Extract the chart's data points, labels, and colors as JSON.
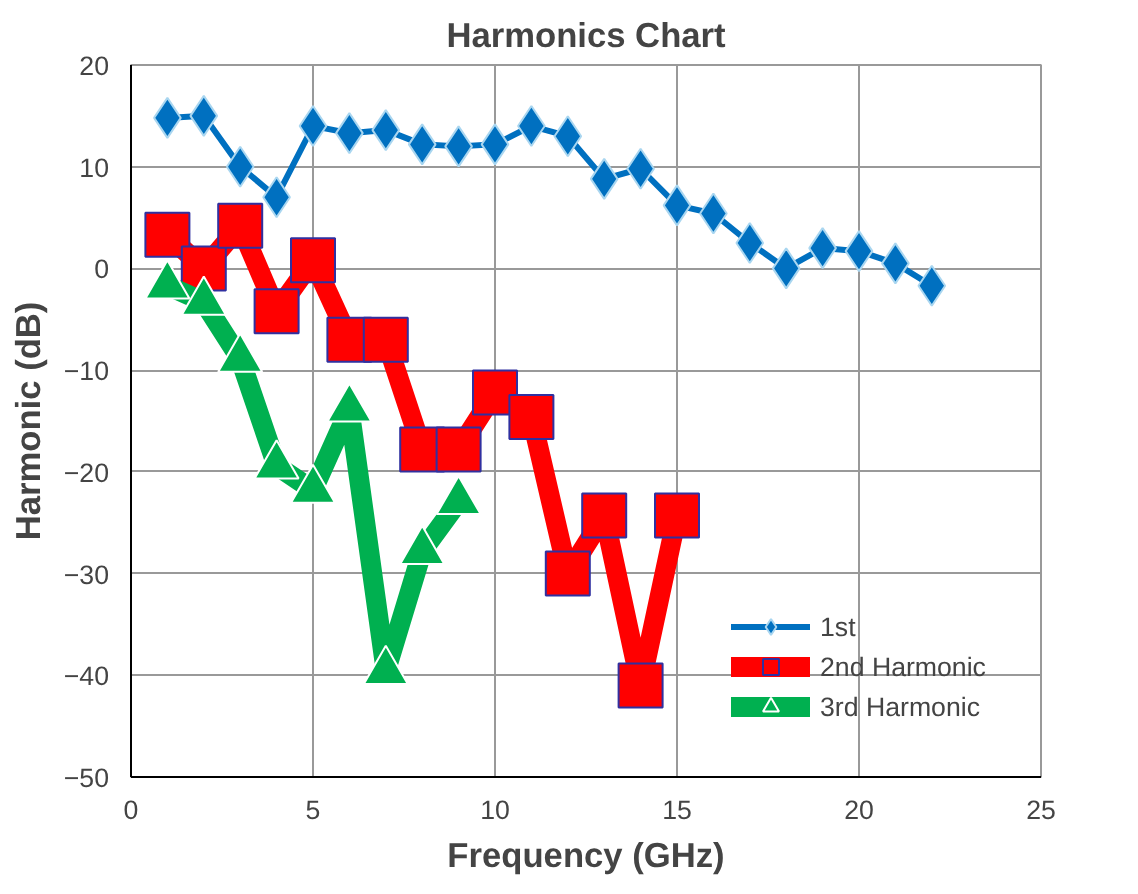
{
  "chart_data": {
    "type": "line",
    "title": "Harmonics Chart",
    "xlabel": "Frequency (GHz)",
    "ylabel": "Harmonic (dB)",
    "xlim": [
      0,
      25
    ],
    "xticks": [
      0,
      5,
      10,
      15,
      20,
      25
    ],
    "ylim": [
      -50,
      20
    ],
    "yticks": [
      -50,
      -40,
      -30,
      -20,
      -10,
      0,
      10,
      20
    ],
    "grid": true,
    "legend": "bottom right",
    "series": [
      {
        "name": "1st",
        "color": "#0070c0",
        "marker": "diamond",
        "x": [
          1,
          2,
          3,
          4,
          5,
          6,
          7,
          8,
          9,
          10,
          11,
          12,
          13,
          14,
          15,
          16,
          17,
          18,
          19,
          20,
          21,
          22
        ],
        "values": [
          14.8,
          15,
          10,
          7,
          14,
          13.3,
          13.6,
          12.2,
          12,
          12.2,
          14,
          13,
          8.8,
          9.8,
          6.2,
          5.4,
          2.5,
          0,
          2,
          1.7,
          0.5,
          -1.7
        ]
      },
      {
        "name": "2nd Harmonic",
        "color": "#ff0000",
        "marker": "square",
        "x": [
          1,
          2,
          3,
          4,
          5,
          6,
          7,
          8,
          9,
          10,
          11,
          12,
          13,
          14,
          15
        ],
        "values": [
          3.3,
          0,
          4.2,
          -4.2,
          0.8,
          -7,
          -7,
          -17.8,
          -17.8,
          -12.2,
          -14.6,
          -30,
          -24.3,
          -41,
          -24.3
        ]
      },
      {
        "name": "3rd Harmonic",
        "color": "#00b050",
        "marker": "triangle",
        "x": [
          1,
          2,
          3,
          4,
          5,
          6,
          7,
          8,
          9
        ],
        "values": [
          -1.7,
          -3.3,
          -8.9,
          -19.4,
          -21.8,
          -13.8,
          -39.6,
          -27.8,
          -22.9
        ]
      }
    ]
  }
}
